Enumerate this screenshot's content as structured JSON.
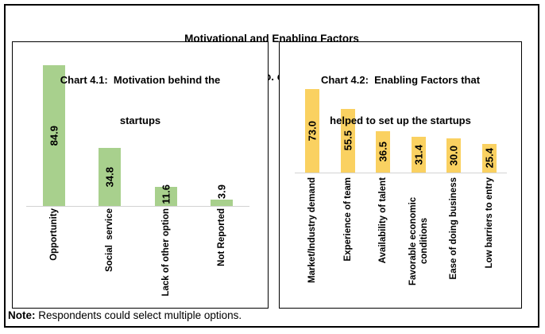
{
  "header": {
    "title_line1": "Motivational and Enabling Factors",
    "title_line2": "(per cent share in total no. of participating startups)"
  },
  "note": {
    "label": "Note:",
    "text": " Respondents could select multiple options."
  },
  "colors": {
    "left_bar": "#A8D08D",
    "right_bar": "#FAD161",
    "axis_line": "#D3D3D3",
    "border": "#000000",
    "text": "#000000"
  },
  "chart_data": [
    {
      "type": "bar",
      "title": "Chart 4.1:  Motivation behind the startups",
      "title_lines": [
        "Chart 4.1:  Motivation behind the",
        "startups"
      ],
      "categories": [
        "Opportunity",
        "Social  service",
        "Lack of other option",
        "Not Reported"
      ],
      "values": [
        84.9,
        34.8,
        11.6,
        3.9
      ],
      "value_labels": [
        "84.9",
        "34.8",
        "11.6",
        "3.9"
      ],
      "bar_color": "#A8D08D",
      "xlabel": "",
      "ylabel": "",
      "ylim": [
        0,
        90
      ],
      "grid": false,
      "legend": "none",
      "value_label_rotation": 90,
      "category_label_rotation": 90
    },
    {
      "type": "bar",
      "title": "Chart 4.2:  Enabling Factors that helped to set up the startups",
      "title_lines": [
        "Chart 4.2:  Enabling Factors that",
        "helped to set up the startups"
      ],
      "categories": [
        "Market/Industry demand",
        "Experience of team",
        "Availability of talent",
        "Favorable economic conditions",
        "Ease of doing business",
        "Low barriers to entry"
      ],
      "values": [
        73.0,
        55.5,
        36.5,
        31.4,
        30.0,
        25.4
      ],
      "value_labels": [
        "73.0",
        "55.5",
        "36.5",
        "31.4",
        "30.0",
        "25.4"
      ],
      "bar_color": "#FAD161",
      "xlabel": "",
      "ylabel": "",
      "ylim": [
        0,
        80
      ],
      "grid": false,
      "legend": "none",
      "value_label_rotation": 90,
      "category_label_rotation": 90
    }
  ]
}
